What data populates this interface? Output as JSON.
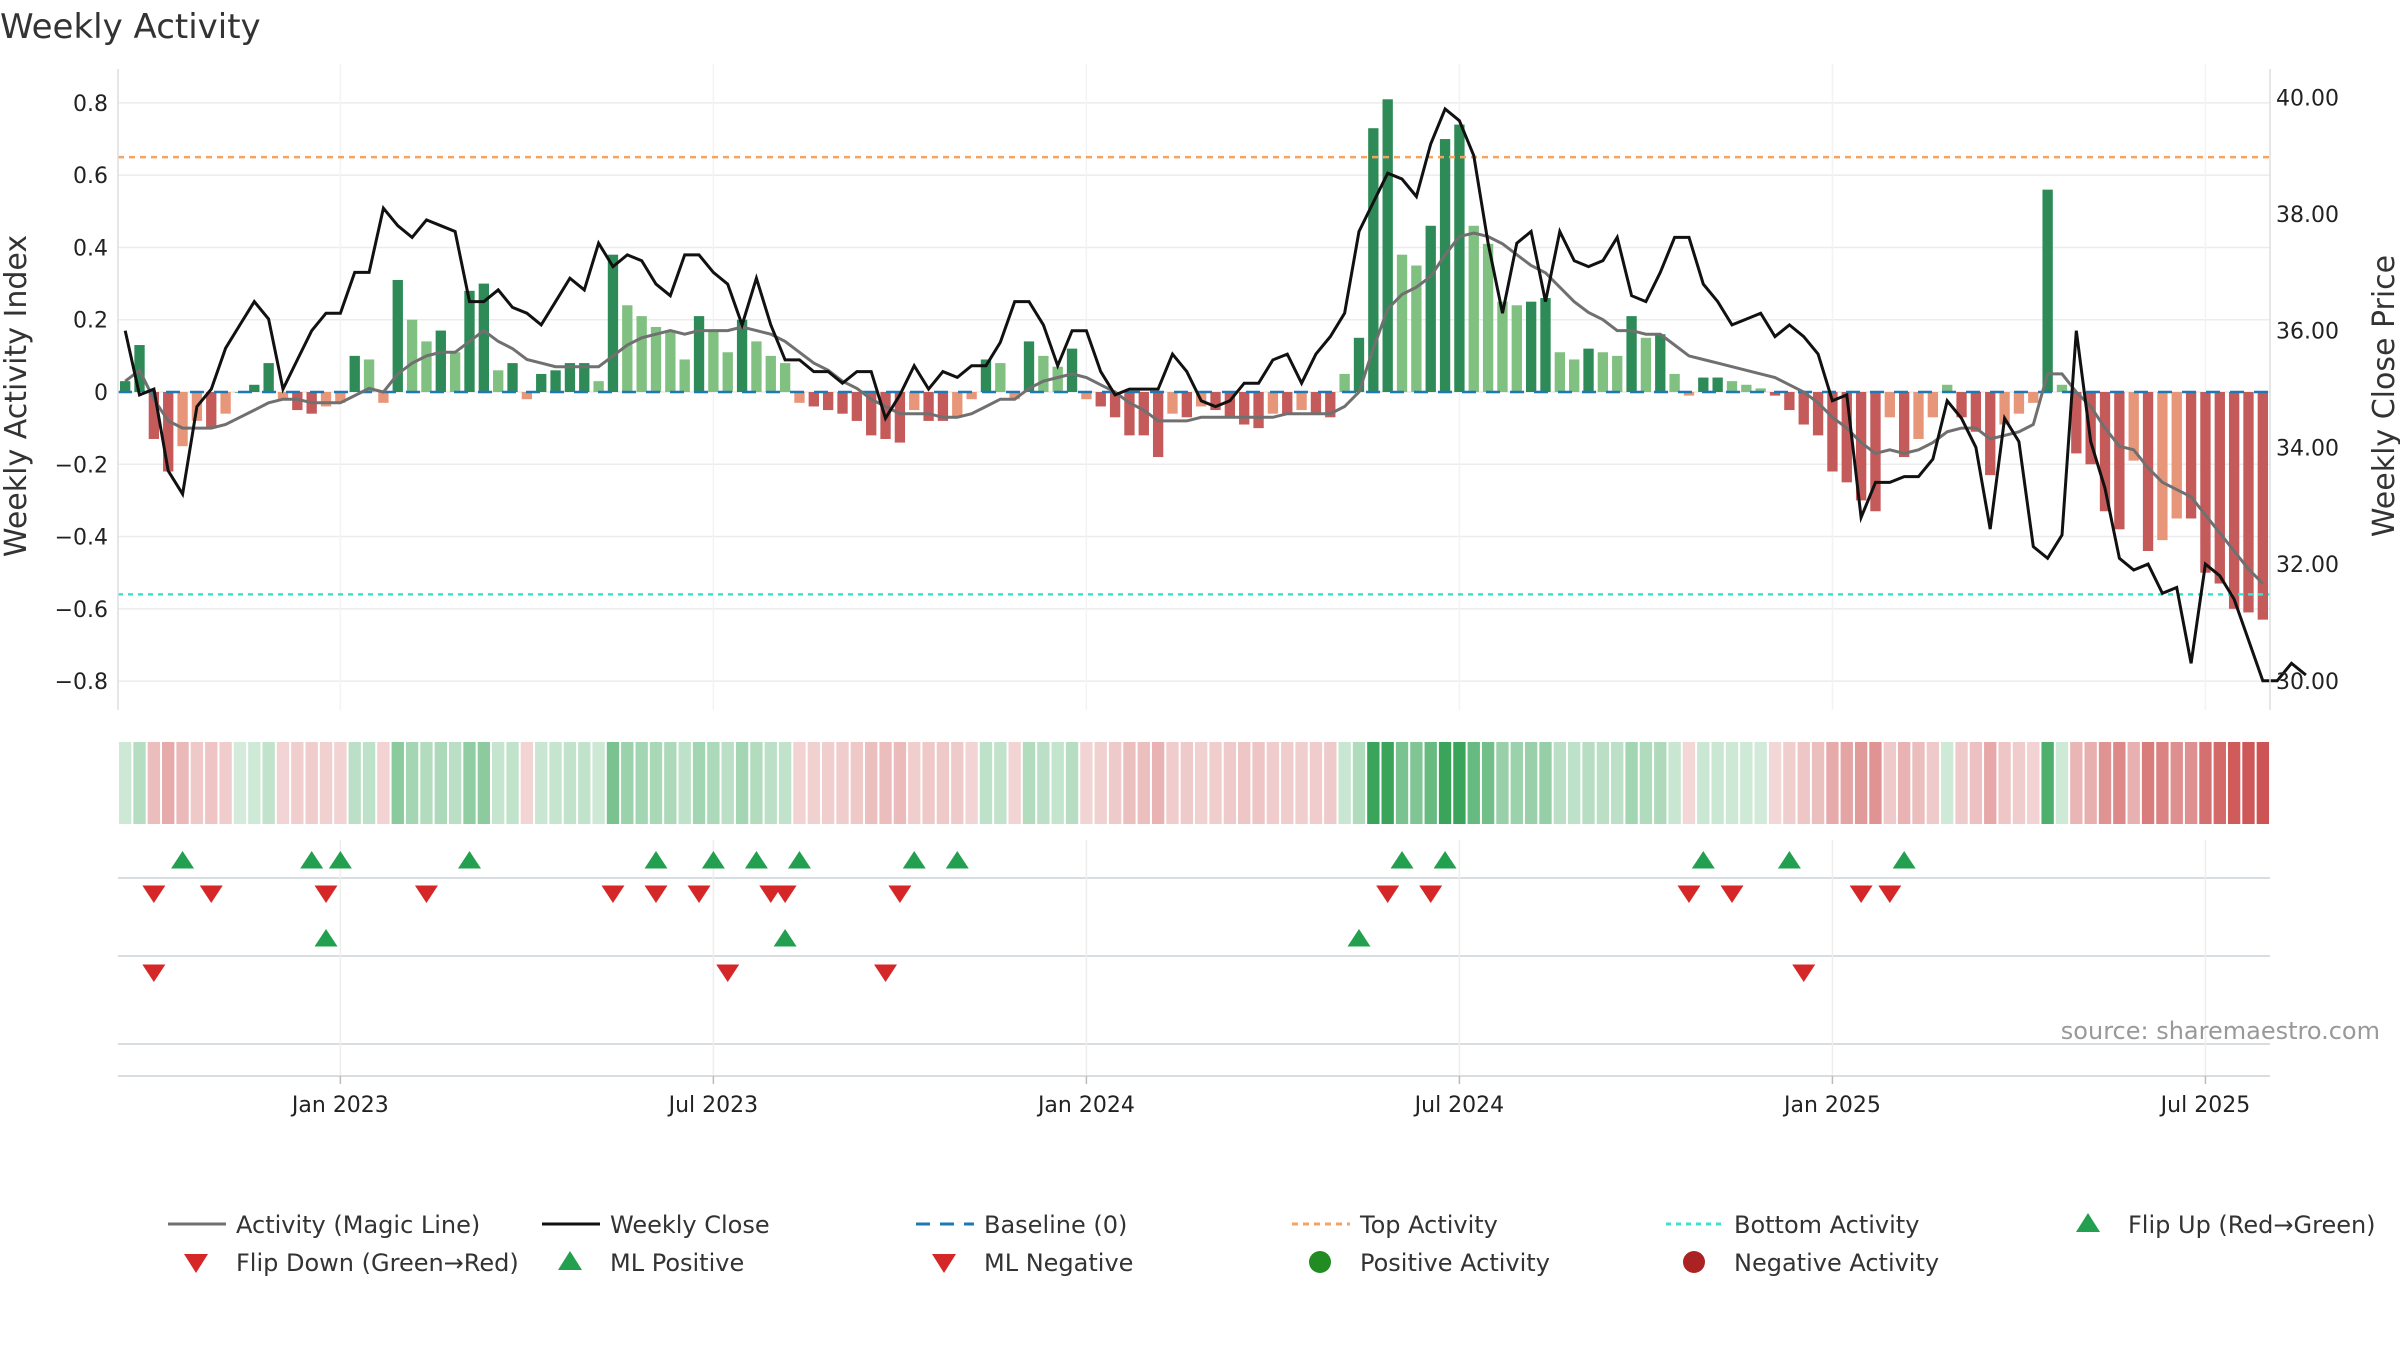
{
  "colors": {
    "pos_dark": "#2e8b57",
    "pos_light": "#80c080",
    "neg_dark": "#c55a5a",
    "neg_light": "#e8967a",
    "magic_line": "#707070",
    "weekly_close": "#111111",
    "baseline": "#1f77b4",
    "top_line": "#f4a460",
    "bottom_line": "#40e0d0",
    "up_marker": "#22a050",
    "down_marker": "#d62728",
    "pos_dot": "#228b22",
    "neg_dot": "#aa2222"
  },
  "chart_data": {
    "type": "bar",
    "title": "Weekly Activity",
    "ylabel": "Weekly Activity Index",
    "y2label": "Weekly Close Price",
    "ylim": [
      -0.88,
      0.88
    ],
    "y2lim": [
      29.5,
      40.4
    ],
    "y_ticks": [
      0.8,
      0.6,
      0.4,
      0.2,
      0,
      -0.2,
      -0.4,
      -0.6,
      -0.8
    ],
    "y_tick_labels": [
      "0.8",
      "0.6",
      "0.4",
      "0.2",
      "0",
      "−0.2",
      "−0.4",
      "−0.6",
      "−0.8"
    ],
    "y2_ticks": [
      40,
      38,
      36,
      34,
      32,
      30
    ],
    "y2_tick_labels": [
      "40.00",
      "38.00",
      "36.00",
      "34.00",
      "32.00",
      "30.00"
    ],
    "x_ticks": [
      {
        "week": 15,
        "label": "Jan 2023"
      },
      {
        "week": 41,
        "label": "Jul 2023"
      },
      {
        "week": 67,
        "label": "Jan 2024"
      },
      {
        "week": 93,
        "label": "Jul 2024"
      },
      {
        "week": 119,
        "label": "Jan 2025"
      },
      {
        "week": 145,
        "label": "Jul 2025"
      }
    ],
    "top_activity": 0.65,
    "bottom_activity": -0.56,
    "activity": [
      0.03,
      0.13,
      -0.13,
      -0.22,
      -0.15,
      -0.08,
      -0.1,
      -0.06,
      0.0,
      0.02,
      0.08,
      -0.02,
      -0.05,
      -0.06,
      -0.04,
      -0.03,
      0.1,
      0.09,
      -0.03,
      0.31,
      0.2,
      0.14,
      0.17,
      0.11,
      0.28,
      0.3,
      0.06,
      0.08,
      -0.02,
      0.05,
      0.06,
      0.08,
      0.08,
      0.03,
      0.38,
      0.24,
      0.21,
      0.18,
      0.17,
      0.09,
      0.21,
      0.17,
      0.11,
      0.2,
      0.14,
      0.1,
      0.08,
      -0.03,
      -0.04,
      -0.05,
      -0.06,
      -0.08,
      -0.12,
      -0.13,
      -0.14,
      -0.05,
      -0.08,
      -0.08,
      -0.07,
      -0.02,
      0.09,
      0.08,
      -0.02,
      0.14,
      0.1,
      0.07,
      0.12,
      -0.02,
      -0.04,
      -0.07,
      -0.12,
      -0.12,
      -0.18,
      -0.06,
      -0.07,
      -0.04,
      -0.05,
      -0.07,
      -0.09,
      -0.1,
      -0.06,
      -0.06,
      -0.05,
      -0.06,
      -0.07,
      0.05,
      0.15,
      0.73,
      0.81,
      0.38,
      0.35,
      0.46,
      0.7,
      0.74,
      0.46,
      0.41,
      0.25,
      0.24,
      0.25,
      0.26,
      0.11,
      0.09,
      0.12,
      0.11,
      0.1,
      0.21,
      0.15,
      0.16,
      0.05,
      -0.01,
      0.04,
      0.04,
      0.03,
      0.02,
      0.01,
      -0.01,
      -0.05,
      -0.09,
      -0.12,
      -0.22,
      -0.25,
      -0.3,
      -0.33,
      -0.07,
      -0.18,
      -0.13,
      -0.07,
      0.02,
      -0.07,
      -0.11,
      -0.23,
      -0.09,
      -0.06,
      -0.03,
      0.56,
      0.02,
      -0.17,
      -0.2,
      -0.33,
      -0.38,
      -0.19,
      -0.44,
      -0.41,
      -0.35,
      -0.35,
      -0.5,
      -0.53,
      -0.6,
      -0.61,
      -0.63
    ],
    "magic_line": [
      0.03,
      0.06,
      -0.02,
      -0.08,
      -0.1,
      -0.1,
      -0.1,
      -0.09,
      -0.07,
      -0.05,
      -0.03,
      -0.02,
      -0.02,
      -0.03,
      -0.03,
      -0.03,
      -0.01,
      0.01,
      0.0,
      0.05,
      0.08,
      0.1,
      0.11,
      0.11,
      0.14,
      0.17,
      0.14,
      0.12,
      0.09,
      0.08,
      0.07,
      0.07,
      0.07,
      0.07,
      0.1,
      0.13,
      0.15,
      0.16,
      0.17,
      0.16,
      0.17,
      0.17,
      0.17,
      0.18,
      0.17,
      0.16,
      0.14,
      0.11,
      0.08,
      0.06,
      0.03,
      0.01,
      -0.02,
      -0.04,
      -0.06,
      -0.06,
      -0.06,
      -0.07,
      -0.07,
      -0.06,
      -0.04,
      -0.02,
      -0.02,
      0.01,
      0.03,
      0.04,
      0.05,
      0.04,
      0.02,
      0.0,
      -0.03,
      -0.05,
      -0.08,
      -0.08,
      -0.08,
      -0.07,
      -0.07,
      -0.07,
      -0.07,
      -0.07,
      -0.07,
      -0.06,
      -0.06,
      -0.06,
      -0.06,
      -0.04,
      0.0,
      0.12,
      0.23,
      0.27,
      0.29,
      0.32,
      0.38,
      0.43,
      0.44,
      0.43,
      0.41,
      0.38,
      0.35,
      0.33,
      0.29,
      0.25,
      0.22,
      0.2,
      0.17,
      0.17,
      0.16,
      0.16,
      0.13,
      0.1,
      0.09,
      0.08,
      0.07,
      0.06,
      0.05,
      0.04,
      0.02,
      0.0,
      -0.03,
      -0.07,
      -0.1,
      -0.14,
      -0.17,
      -0.16,
      -0.17,
      -0.16,
      -0.14,
      -0.11,
      -0.1,
      -0.1,
      -0.13,
      -0.12,
      -0.11,
      -0.09,
      0.05,
      0.05,
      0.0,
      -0.04,
      -0.1,
      -0.15,
      -0.16,
      -0.21,
      -0.25,
      -0.27,
      -0.29,
      -0.34,
      -0.39,
      -0.44,
      -0.49,
      -0.53
    ],
    "weekly_close": [
      36.0,
      34.9,
      35.0,
      33.6,
      33.2,
      34.7,
      35.0,
      35.7,
      36.1,
      36.5,
      36.2,
      35.0,
      35.5,
      36.0,
      36.3,
      36.3,
      37.0,
      37.0,
      38.1,
      37.8,
      37.6,
      37.9,
      37.8,
      37.7,
      36.5,
      36.5,
      36.7,
      36.4,
      36.3,
      36.1,
      36.5,
      36.9,
      36.7,
      37.5,
      37.1,
      37.3,
      37.2,
      36.8,
      36.6,
      37.3,
      37.3,
      37.0,
      36.8,
      36.1,
      36.9,
      36.1,
      35.5,
      35.5,
      35.3,
      35.3,
      35.1,
      35.3,
      35.3,
      34.5,
      34.9,
      35.4,
      35.0,
      35.3,
      35.2,
      35.4,
      35.4,
      35.8,
      36.5,
      36.5,
      36.1,
      35.4,
      36.0,
      36.0,
      35.3,
      34.9,
      35.0,
      35.0,
      35.0,
      35.6,
      35.3,
      34.8,
      34.7,
      34.8,
      35.1,
      35.1,
      35.5,
      35.6,
      35.1,
      35.6,
      35.9,
      36.3,
      37.7,
      38.2,
      38.7,
      38.6,
      38.3,
      39.2,
      39.8,
      39.6,
      39.0,
      37.5,
      36.3,
      37.5,
      37.7,
      36.5,
      37.7,
      37.2,
      37.1,
      37.2,
      37.6,
      36.6,
      36.5,
      37.0,
      37.6,
      37.6,
      36.8,
      36.5,
      36.1,
      36.2,
      36.3,
      35.9,
      36.1,
      35.9,
      35.6,
      34.8,
      34.9,
      32.8,
      33.4,
      33.4,
      33.5,
      33.5,
      33.8,
      34.8,
      34.5,
      34.0,
      32.6,
      34.5,
      34.1,
      32.3,
      32.1,
      32.5,
      36.0,
      34.1,
      33.3,
      32.1,
      31.9,
      32.0,
      31.5,
      31.6,
      30.3,
      32.0,
      31.8,
      31.4,
      30.7,
      30.0,
      30.0,
      30.3,
      30.1
    ],
    "flip_up": [
      4,
      13,
      15,
      24,
      37,
      41,
      44,
      47,
      55,
      58,
      89,
      92,
      110,
      116,
      124
    ],
    "flip_down": [
      2,
      6,
      14,
      21,
      34,
      37,
      40,
      45,
      46,
      54,
      88,
      91,
      109,
      112,
      121,
      123
    ],
    "ml_positive": [
      14,
      46,
      86
    ],
    "ml_negative": [
      2,
      42,
      53,
      117
    ],
    "source": "source: sharemaestro.com",
    "legend": [
      {
        "key": "magic",
        "label": "Activity (Magic Line)"
      },
      {
        "key": "close",
        "label": "Weekly Close"
      },
      {
        "key": "baseline",
        "label": "Baseline (0)"
      },
      {
        "key": "top",
        "label": "Top Activity"
      },
      {
        "key": "bottom",
        "label": "Bottom Activity"
      },
      {
        "key": "flipup",
        "label": "Flip Up (Red→Green)"
      },
      {
        "key": "flipdown",
        "label": "Flip Down (Green→Red)"
      },
      {
        "key": "mlpos",
        "label": "ML Positive"
      },
      {
        "key": "mlneg",
        "label": "ML Negative"
      },
      {
        "key": "posact",
        "label": "Positive Activity"
      },
      {
        "key": "negact",
        "label": "Negative Activity"
      }
    ]
  }
}
